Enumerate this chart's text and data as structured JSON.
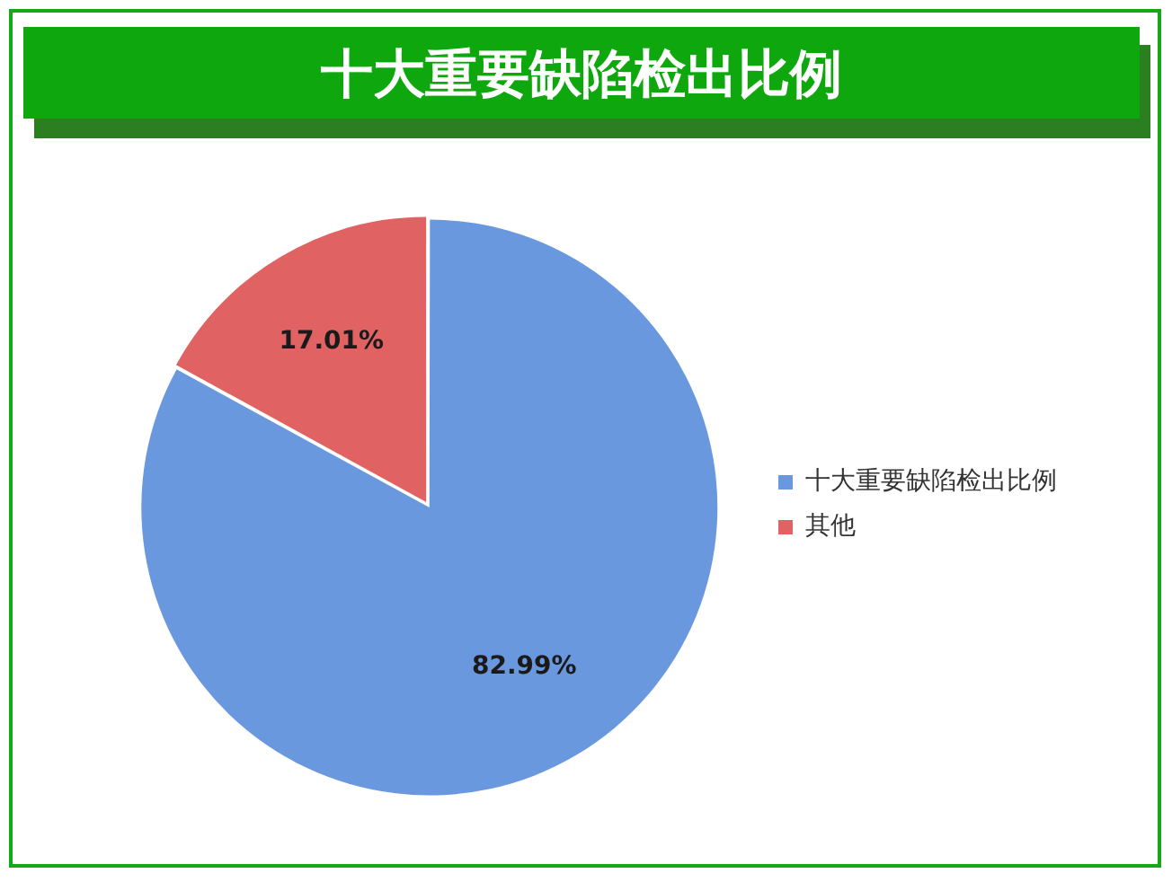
{
  "chart_data": {
    "type": "pie",
    "title": "十大重要缺陷检出比例",
    "categories": [
      "十大重要缺陷检出比例",
      "其他"
    ],
    "values": [
      82.99,
      17.01
    ],
    "colors": [
      "#6a98de",
      "#e06262"
    ],
    "value_labels": [
      "82.99%",
      "17.01%"
    ],
    "legend": "right"
  }
}
